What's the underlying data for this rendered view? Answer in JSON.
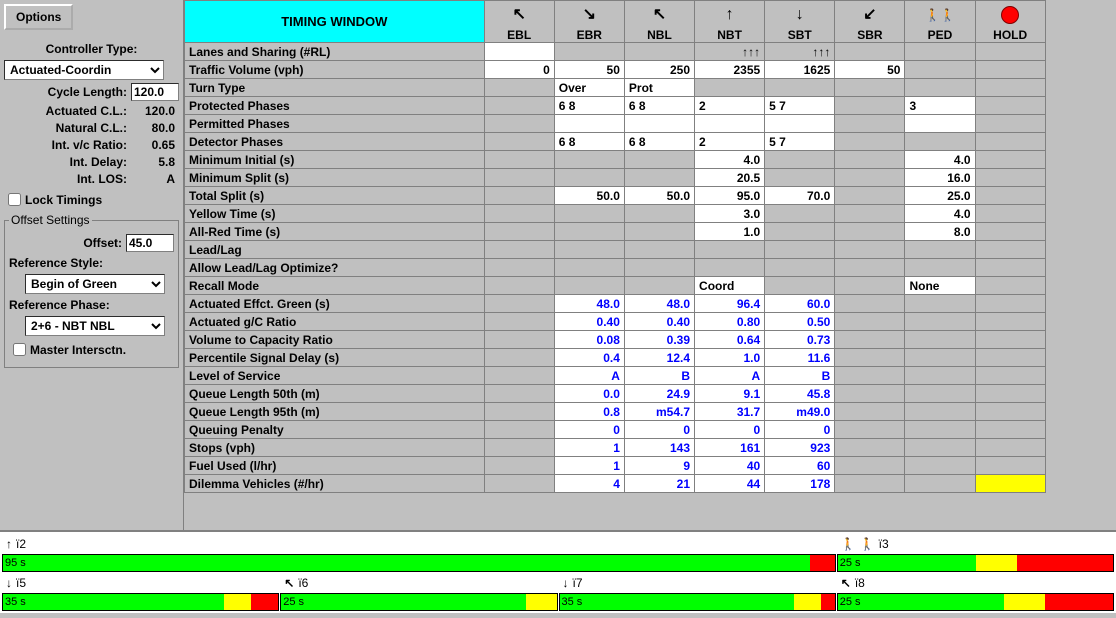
{
  "sidebar": {
    "options_label": "Options",
    "controller_type_label": "Controller Type:",
    "controller_type_value": "Actuated-Coordin",
    "cycle_length_label": "Cycle Length:",
    "cycle_length_value": "120.0",
    "actuated_cl_label": "Actuated C.L.:",
    "actuated_cl_value": "120.0",
    "natural_cl_label": "Natural C.L.:",
    "natural_cl_value": "80.0",
    "int_vc_label": "Int. v/c Ratio:",
    "int_vc_value": "0.65",
    "int_delay_label": "Int. Delay:",
    "int_delay_value": "5.8",
    "int_los_label": "Int. LOS:",
    "int_los_value": "A",
    "lock_timings_label": "Lock Timings",
    "offset_settings_legend": "Offset Settings",
    "offset_label": "Offset:",
    "offset_value": "45.0",
    "ref_style_label": "Reference Style:",
    "ref_style_value": "Begin of Green",
    "ref_phase_label": "Reference Phase:",
    "ref_phase_value": "2+6 - NBT NBL",
    "master_intersctn_label": "Master Intersctn."
  },
  "header": {
    "title": "TIMING WINDOW",
    "columns": [
      {
        "key": "EBL",
        "icon": "↖"
      },
      {
        "key": "EBR",
        "icon": "↘"
      },
      {
        "key": "NBL",
        "icon": "↖"
      },
      {
        "key": "NBT",
        "icon": "↑"
      },
      {
        "key": "SBT",
        "icon": "↓"
      },
      {
        "key": "SBR",
        "icon": "↙"
      },
      {
        "key": "PED",
        "icon": "ped"
      },
      {
        "key": "HOLD",
        "icon": "hold"
      }
    ]
  },
  "rows": [
    {
      "label": "Lanes and Sharing (#RL)",
      "cells": [
        {
          "v": "",
          "w": true
        },
        {
          "v": ""
        },
        {
          "v": ""
        },
        {
          "v": "↑↑↑"
        },
        {
          "v": "↑↑↑"
        },
        {
          "v": ""
        },
        {
          "v": ""
        },
        {
          "v": ""
        }
      ]
    },
    {
      "label": "Traffic Volume (vph)",
      "cells": [
        {
          "v": "0",
          "w": true
        },
        {
          "v": "50",
          "w": true
        },
        {
          "v": "250",
          "w": true
        },
        {
          "v": "2355",
          "w": true
        },
        {
          "v": "1625",
          "w": true
        },
        {
          "v": "50",
          "w": true
        },
        {
          "v": ""
        },
        {
          "v": ""
        }
      ]
    },
    {
      "label": "Turn Type",
      "cells": [
        {
          "v": ""
        },
        {
          "v": "Over",
          "w": true,
          "a": "left"
        },
        {
          "v": "Prot",
          "w": true,
          "a": "left"
        },
        {
          "v": ""
        },
        {
          "v": ""
        },
        {
          "v": ""
        },
        {
          "v": ""
        },
        {
          "v": ""
        }
      ]
    },
    {
      "label": "Protected Phases",
      "cells": [
        {
          "v": ""
        },
        {
          "v": "6 8",
          "w": true,
          "a": "left"
        },
        {
          "v": "6 8",
          "w": true,
          "a": "left"
        },
        {
          "v": "2",
          "w": true,
          "a": "left"
        },
        {
          "v": "5 7",
          "w": true,
          "a": "left"
        },
        {
          "v": ""
        },
        {
          "v": "3",
          "w": true,
          "a": "left"
        },
        {
          "v": ""
        }
      ]
    },
    {
      "label": "Permitted Phases",
      "cells": [
        {
          "v": ""
        },
        {
          "v": "",
          "w": true
        },
        {
          "v": "",
          "w": true
        },
        {
          "v": "",
          "w": true
        },
        {
          "v": "",
          "w": true
        },
        {
          "v": ""
        },
        {
          "v": "",
          "w": true
        },
        {
          "v": ""
        }
      ]
    },
    {
      "label": "Detector Phases",
      "cells": [
        {
          "v": ""
        },
        {
          "v": "6 8",
          "w": true,
          "a": "left"
        },
        {
          "v": "6 8",
          "w": true,
          "a": "left"
        },
        {
          "v": "2",
          "w": true,
          "a": "left"
        },
        {
          "v": "5 7",
          "w": true,
          "a": "left"
        },
        {
          "v": ""
        },
        {
          "v": ""
        },
        {
          "v": ""
        }
      ]
    },
    {
      "label": "Minimum Initial (s)",
      "cells": [
        {
          "v": ""
        },
        {
          "v": ""
        },
        {
          "v": ""
        },
        {
          "v": "4.0",
          "w": true
        },
        {
          "v": ""
        },
        {
          "v": ""
        },
        {
          "v": "4.0",
          "w": true
        },
        {
          "v": ""
        }
      ]
    },
    {
      "label": "Minimum Split (s)",
      "cells": [
        {
          "v": ""
        },
        {
          "v": ""
        },
        {
          "v": ""
        },
        {
          "v": "20.5",
          "w": true
        },
        {
          "v": ""
        },
        {
          "v": ""
        },
        {
          "v": "16.0",
          "w": true
        },
        {
          "v": ""
        }
      ]
    },
    {
      "label": "Total Split (s)",
      "cells": [
        {
          "v": ""
        },
        {
          "v": "50.0",
          "w": true
        },
        {
          "v": "50.0",
          "w": true
        },
        {
          "v": "95.0",
          "w": true
        },
        {
          "v": "70.0",
          "w": true
        },
        {
          "v": ""
        },
        {
          "v": "25.0",
          "w": true
        },
        {
          "v": ""
        }
      ]
    },
    {
      "label": "Yellow Time (s)",
      "cells": [
        {
          "v": ""
        },
        {
          "v": ""
        },
        {
          "v": ""
        },
        {
          "v": "3.0",
          "w": true
        },
        {
          "v": ""
        },
        {
          "v": ""
        },
        {
          "v": "4.0",
          "w": true
        },
        {
          "v": ""
        }
      ]
    },
    {
      "label": "All-Red Time (s)",
      "cells": [
        {
          "v": ""
        },
        {
          "v": ""
        },
        {
          "v": ""
        },
        {
          "v": "1.0",
          "w": true
        },
        {
          "v": ""
        },
        {
          "v": ""
        },
        {
          "v": "8.0",
          "w": true
        },
        {
          "v": ""
        }
      ]
    },
    {
      "label": "Lead/Lag",
      "cells": [
        {
          "v": ""
        },
        {
          "v": ""
        },
        {
          "v": ""
        },
        {
          "v": ""
        },
        {
          "v": ""
        },
        {
          "v": ""
        },
        {
          "v": ""
        },
        {
          "v": ""
        }
      ]
    },
    {
      "label": "Allow Lead/Lag Optimize?",
      "cells": [
        {
          "v": ""
        },
        {
          "v": ""
        },
        {
          "v": ""
        },
        {
          "v": ""
        },
        {
          "v": ""
        },
        {
          "v": ""
        },
        {
          "v": ""
        },
        {
          "v": ""
        }
      ]
    },
    {
      "label": "Recall Mode",
      "cells": [
        {
          "v": ""
        },
        {
          "v": ""
        },
        {
          "v": ""
        },
        {
          "v": "Coord",
          "w": true,
          "a": "left"
        },
        {
          "v": ""
        },
        {
          "v": ""
        },
        {
          "v": "None",
          "w": true,
          "a": "left"
        },
        {
          "v": ""
        }
      ]
    },
    {
      "label": "Actuated Effct. Green (s)",
      "cells": [
        {
          "v": ""
        },
        {
          "v": "48.0",
          "b": true
        },
        {
          "v": "48.0",
          "b": true
        },
        {
          "v": "96.4",
          "b": true
        },
        {
          "v": "60.0",
          "b": true
        },
        {
          "v": ""
        },
        {
          "v": ""
        },
        {
          "v": ""
        }
      ]
    },
    {
      "label": "Actuated g/C Ratio",
      "cells": [
        {
          "v": ""
        },
        {
          "v": "0.40",
          "b": true
        },
        {
          "v": "0.40",
          "b": true
        },
        {
          "v": "0.80",
          "b": true
        },
        {
          "v": "0.50",
          "b": true
        },
        {
          "v": ""
        },
        {
          "v": ""
        },
        {
          "v": ""
        }
      ]
    },
    {
      "label": "Volume to Capacity Ratio",
      "cells": [
        {
          "v": ""
        },
        {
          "v": "0.08",
          "b": true
        },
        {
          "v": "0.39",
          "b": true
        },
        {
          "v": "0.64",
          "b": true
        },
        {
          "v": "0.73",
          "b": true
        },
        {
          "v": ""
        },
        {
          "v": ""
        },
        {
          "v": ""
        }
      ]
    },
    {
      "label": "Percentile Signal Delay (s)",
      "cells": [
        {
          "v": ""
        },
        {
          "v": "0.4",
          "b": true
        },
        {
          "v": "12.4",
          "b": true
        },
        {
          "v": "1.0",
          "b": true
        },
        {
          "v": "11.6",
          "b": true
        },
        {
          "v": ""
        },
        {
          "v": ""
        },
        {
          "v": ""
        }
      ]
    },
    {
      "label": "Level of Service",
      "cells": [
        {
          "v": ""
        },
        {
          "v": "A",
          "b": true
        },
        {
          "v": "B",
          "b": true
        },
        {
          "v": "A",
          "b": true
        },
        {
          "v": "B",
          "b": true
        },
        {
          "v": ""
        },
        {
          "v": ""
        },
        {
          "v": ""
        }
      ]
    },
    {
      "label": "Queue Length 50th (m)",
      "cells": [
        {
          "v": ""
        },
        {
          "v": "0.0",
          "b": true
        },
        {
          "v": "24.9",
          "b": true
        },
        {
          "v": "9.1",
          "b": true
        },
        {
          "v": "45.8",
          "b": true
        },
        {
          "v": ""
        },
        {
          "v": ""
        },
        {
          "v": ""
        }
      ]
    },
    {
      "label": "Queue Length 95th (m)",
      "cells": [
        {
          "v": ""
        },
        {
          "v": "0.8",
          "b": true
        },
        {
          "v": "m54.7",
          "b": true
        },
        {
          "v": "31.7",
          "b": true
        },
        {
          "v": "m49.0",
          "b": true
        },
        {
          "v": ""
        },
        {
          "v": ""
        },
        {
          "v": ""
        }
      ]
    },
    {
      "label": "Queuing Penalty",
      "cells": [
        {
          "v": ""
        },
        {
          "v": "0",
          "b": true
        },
        {
          "v": "0",
          "b": true
        },
        {
          "v": "0",
          "b": true
        },
        {
          "v": "0",
          "b": true
        },
        {
          "v": ""
        },
        {
          "v": ""
        },
        {
          "v": ""
        }
      ]
    },
    {
      "label": "Stops (vph)",
      "cells": [
        {
          "v": ""
        },
        {
          "v": "1",
          "b": true
        },
        {
          "v": "143",
          "b": true
        },
        {
          "v": "161",
          "b": true
        },
        {
          "v": "923",
          "b": true
        },
        {
          "v": ""
        },
        {
          "v": ""
        },
        {
          "v": ""
        }
      ]
    },
    {
      "label": "Fuel Used (l/hr)",
      "cells": [
        {
          "v": ""
        },
        {
          "v": "1",
          "b": true
        },
        {
          "v": "9",
          "b": true
        },
        {
          "v": "40",
          "b": true
        },
        {
          "v": "60",
          "b": true
        },
        {
          "v": ""
        },
        {
          "v": ""
        },
        {
          "v": ""
        }
      ]
    },
    {
      "label": "Dilemma Vehicles (#/hr)",
      "cells": [
        {
          "v": ""
        },
        {
          "v": "4",
          "b": true
        },
        {
          "v": "21",
          "b": true
        },
        {
          "v": "44",
          "b": true
        },
        {
          "v": "178",
          "b": true
        },
        {
          "v": ""
        },
        {
          "v": ""
        },
        {
          "v": "",
          "y": true
        }
      ]
    }
  ],
  "timeline": {
    "row1": [
      {
        "icon": "↑",
        "label": "ï2",
        "span": 3,
        "bar": {
          "label": "95 s",
          "g": 97,
          "y": 0,
          "r": 3
        }
      },
      {
        "icon": "ped",
        "label": "ï3",
        "span": 1,
        "bar": {
          "label": "25 s",
          "g": 50,
          "y": 15,
          "r": 35
        }
      }
    ],
    "row2": [
      {
        "icon": "↓",
        "label": "ï5",
        "span": 1,
        "bar": {
          "label": "35 s",
          "g": 80,
          "y": 10,
          "r": 10
        }
      },
      {
        "icon": "↖",
        "label": "ï6",
        "span": 1,
        "bar": {
          "label": "25 s",
          "g": 80,
          "y": 10,
          "r": 0
        }
      },
      {
        "icon": "↓",
        "label": "ï7",
        "span": 1,
        "bar": {
          "label": "35 s",
          "g": 85,
          "y": 10,
          "r": 5
        }
      },
      {
        "icon": "↖",
        "label": "ï8",
        "span": 1,
        "bar": {
          "label": "25 s",
          "g": 60,
          "y": 15,
          "r": 25
        }
      }
    ]
  }
}
